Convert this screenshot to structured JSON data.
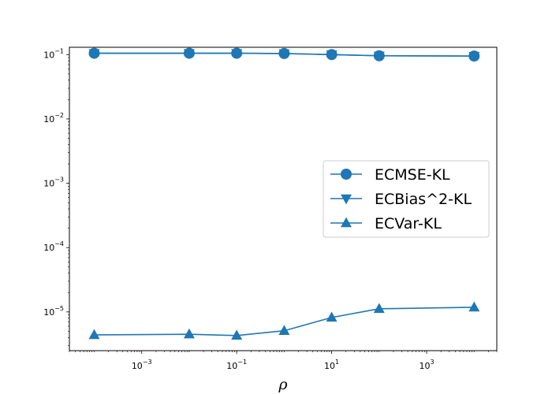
{
  "chart_data": {
    "type": "line",
    "title": "",
    "xlabel": "ρ",
    "ylabel": "",
    "xscale": "log",
    "yscale": "log",
    "xlim": [
      3e-05,
      30000
    ],
    "ylim": [
      2.5e-06,
      0.13
    ],
    "x_ticks": [
      {
        "value": 0.001,
        "base": "10",
        "exp": "−3"
      },
      {
        "value": 0.1,
        "base": "10",
        "exp": "−1"
      },
      {
        "value": 10,
        "base": "10",
        "exp": "1"
      },
      {
        "value": 1000,
        "base": "10",
        "exp": "3"
      }
    ],
    "y_ticks": [
      {
        "value": 1e-05,
        "base": "10",
        "exp": "−5"
      },
      {
        "value": 0.0001,
        "base": "10",
        "exp": "−4"
      },
      {
        "value": 0.001,
        "base": "10",
        "exp": "−3"
      },
      {
        "value": 0.01,
        "base": "10",
        "exp": "−2"
      },
      {
        "value": 0.1,
        "base": "10",
        "exp": "−1"
      }
    ],
    "x": [
      0.0001,
      0.01,
      0.1,
      1,
      10,
      100,
      10000
    ],
    "series": [
      {
        "name": "ECMSE-KL",
        "marker": "circle",
        "color": "#1f77b4",
        "values": [
          0.105,
          0.105,
          0.105,
          0.104,
          0.1,
          0.096,
          0.095
        ]
      },
      {
        "name": "ECBias^2-KL",
        "marker": "triangle-down",
        "color": "#1f77b4",
        "values": [
          0.105,
          0.105,
          0.105,
          0.104,
          0.1,
          0.096,
          0.095
        ]
      },
      {
        "name": "ECVar-KL",
        "marker": "triangle-up",
        "color": "#1f77b4",
        "values": [
          4.4e-06,
          4.5e-06,
          4.3e-06,
          5.1e-06,
          8.2e-06,
          1.12e-05,
          1.18e-05
        ]
      }
    ],
    "legend": {
      "position": "center-right"
    },
    "grid": false
  }
}
